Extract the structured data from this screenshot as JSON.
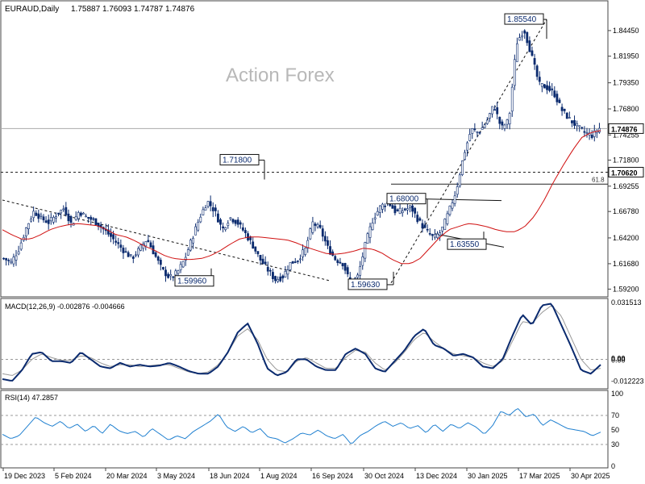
{
  "header": {
    "symbol": "EURAUD,Daily",
    "open": "1.75887",
    "high": "1.76093",
    "low": "1.74787",
    "close": "1.74876"
  },
  "watermark": "Action Forex",
  "colors": {
    "candle": "#0a2a6e",
    "ma": "#d01010",
    "macd": "#0a2a6e",
    "signal": "#999999",
    "rsi": "#2080d0",
    "grid": "#444444"
  },
  "chart_data": [
    {
      "type": "candlestick",
      "title": "EURAUD,Daily",
      "ylim": [
        1.586,
        1.872
      ],
      "price_ticks": [
        "1.84450",
        "1.81950",
        "1.79350",
        "1.76800",
        "1.74255",
        "1.71800",
        "1.69255",
        "1.66780",
        "1.64200",
        "1.61680",
        "1.59200"
      ],
      "dates": [
        "19 Dec 2023",
        "5 Feb 2024",
        "20 Mar 2024",
        "3 May 2024",
        "18 Jun 2024",
        "1 Aug 2024",
        "16 Sep 2024",
        "30 Oct 2024",
        "13 Dec 2024",
        "30 Jan 2025",
        "17 Mar 2025",
        "30 Apr 2025"
      ],
      "close_path": [
        1.622,
        1.618,
        1.631,
        1.652,
        1.668,
        1.661,
        1.657,
        1.665,
        1.671,
        1.655,
        1.668,
        1.662,
        1.659,
        1.652,
        1.645,
        1.637,
        1.629,
        1.622,
        1.631,
        1.641,
        1.626,
        1.611,
        1.603,
        1.608,
        1.621,
        1.642,
        1.662,
        1.678,
        1.668,
        1.65,
        1.662,
        1.657,
        1.647,
        1.635,
        1.621,
        1.611,
        1.601,
        1.604,
        1.617,
        1.621,
        1.631,
        1.657,
        1.65,
        1.632,
        1.621,
        1.617,
        1.597,
        1.605,
        1.637,
        1.661,
        1.673,
        1.677,
        1.667,
        1.669,
        1.672,
        1.659,
        1.649,
        1.642,
        1.648,
        1.667,
        1.688,
        1.723,
        1.748,
        1.745,
        1.755,
        1.772,
        1.749,
        1.757,
        1.832,
        1.846,
        1.82,
        1.792,
        1.789,
        1.783,
        1.767,
        1.758,
        1.751,
        1.745,
        1.742,
        1.749
      ],
      "ma_path": [
        1.65,
        1.645,
        1.641,
        1.641,
        1.645,
        1.65,
        1.653,
        1.655,
        1.656,
        1.655,
        1.654,
        1.65,
        1.645,
        1.643,
        1.639,
        1.634,
        1.63,
        1.625,
        1.622,
        1.621,
        1.621,
        1.622,
        1.625,
        1.63,
        1.636,
        1.641,
        1.643,
        1.643,
        1.642,
        1.641,
        1.64,
        1.637,
        1.633,
        1.63,
        1.627,
        1.626,
        1.627,
        1.629,
        1.632,
        1.631,
        1.627,
        1.621,
        1.617,
        1.617,
        1.622,
        1.632,
        1.642,
        1.65,
        1.653,
        1.656,
        1.655,
        1.653,
        1.65,
        1.648,
        1.648,
        1.653,
        1.663,
        1.678,
        1.696,
        1.712,
        1.727,
        1.74,
        1.745,
        1.747
      ],
      "current_price": "1.74876",
      "horizontal_levels": [
        {
          "price": 1.7062,
          "label": "1.70620",
          "style": "dashed"
        },
        {
          "price": 1.6945,
          "label": "61.8",
          "style": "solid"
        }
      ],
      "annotations": [
        {
          "label": "1.85540",
          "price": 1.8554
        },
        {
          "label": "1.71800",
          "price": 1.718
        },
        {
          "label": "1.68000",
          "price": 1.68
        },
        {
          "label": "1.63550",
          "price": 1.6355
        },
        {
          "label": "1.59960",
          "price": 1.5996
        },
        {
          "label": "1.59630",
          "price": 1.5963
        }
      ]
    },
    {
      "type": "line",
      "title": "MACD(12,26,9) -0.002876 -0.004666",
      "ylim": [
        -0.0155,
        0.0325
      ],
      "y_ticks": [
        "0.031513",
        "0.00",
        "0.00",
        "-0.012223"
      ],
      "macd_path": [
        -0.011,
        -0.012,
        -0.006,
        0.003,
        0.004,
        -0.001,
        -0.001,
        -0.002,
        0.004,
        0.0,
        -0.004,
        -0.005,
        -0.002,
        -0.004,
        -0.003,
        -0.004,
        -0.0035,
        -0.002,
        -0.004,
        -0.0065,
        -0.008,
        -0.008,
        -0.004,
        0.004,
        0.015,
        0.02,
        0.009,
        -0.005,
        -0.009,
        -0.007,
        0.0,
        0.0,
        -0.004,
        -0.006,
        -0.006,
        0.003,
        0.006,
        0.003,
        -0.005,
        -0.007,
        -0.001,
        0.005,
        0.013,
        0.017,
        0.008,
        0.006,
        0.002,
        0.003,
        0.001,
        -0.004,
        -0.005,
        0.0,
        0.013,
        0.025,
        0.019,
        0.03,
        0.031,
        0.019,
        0.007,
        -0.006,
        -0.008,
        -0.003
      ],
      "signal_path": [
        -0.008,
        -0.009,
        -0.006,
        0.0,
        0.003,
        0.001,
        -0.0005,
        -0.0005,
        0.002,
        0.001,
        -0.002,
        -0.004,
        -0.003,
        -0.003,
        -0.004,
        -0.0035,
        -0.003,
        -0.003,
        -0.005,
        -0.007,
        -0.008,
        -0.007,
        -0.003,
        0.004,
        0.013,
        0.017,
        0.011,
        0.0,
        -0.006,
        -0.007,
        -0.001,
        0.001,
        -0.002,
        -0.005,
        -0.005,
        0.001,
        0.005,
        0.004,
        -0.002,
        -0.006,
        -0.002,
        0.004,
        0.011,
        0.015,
        0.01,
        0.006,
        0.003,
        0.002,
        0.001,
        -0.002,
        -0.004,
        -0.001,
        0.01,
        0.021,
        0.02,
        0.026,
        0.03,
        0.024,
        0.012,
        0.0,
        -0.006,
        -0.005
      ]
    },
    {
      "type": "line",
      "title": "RSI(14) 47.2857",
      "ylim": [
        0,
        100
      ],
      "y_ticks": [
        100,
        70,
        50,
        30,
        0
      ],
      "levels": [
        70,
        30
      ],
      "rsi_path": [
        44,
        38,
        42,
        55,
        68,
        60,
        55,
        62,
        52,
        58,
        48,
        56,
        45,
        58,
        49,
        45,
        48,
        40,
        52,
        44,
        36,
        42,
        38,
        48,
        55,
        62,
        72,
        54,
        48,
        55,
        46,
        52,
        40,
        38,
        32,
        38,
        46,
        43,
        50,
        42,
        38,
        44,
        30,
        42,
        48,
        56,
        62,
        55,
        60,
        52,
        56,
        46,
        58,
        48,
        58,
        52,
        60,
        54,
        44,
        56,
        76,
        70,
        80,
        68,
        72,
        56,
        64,
        58,
        52,
        50,
        48,
        42,
        47
      ]
    }
  ]
}
